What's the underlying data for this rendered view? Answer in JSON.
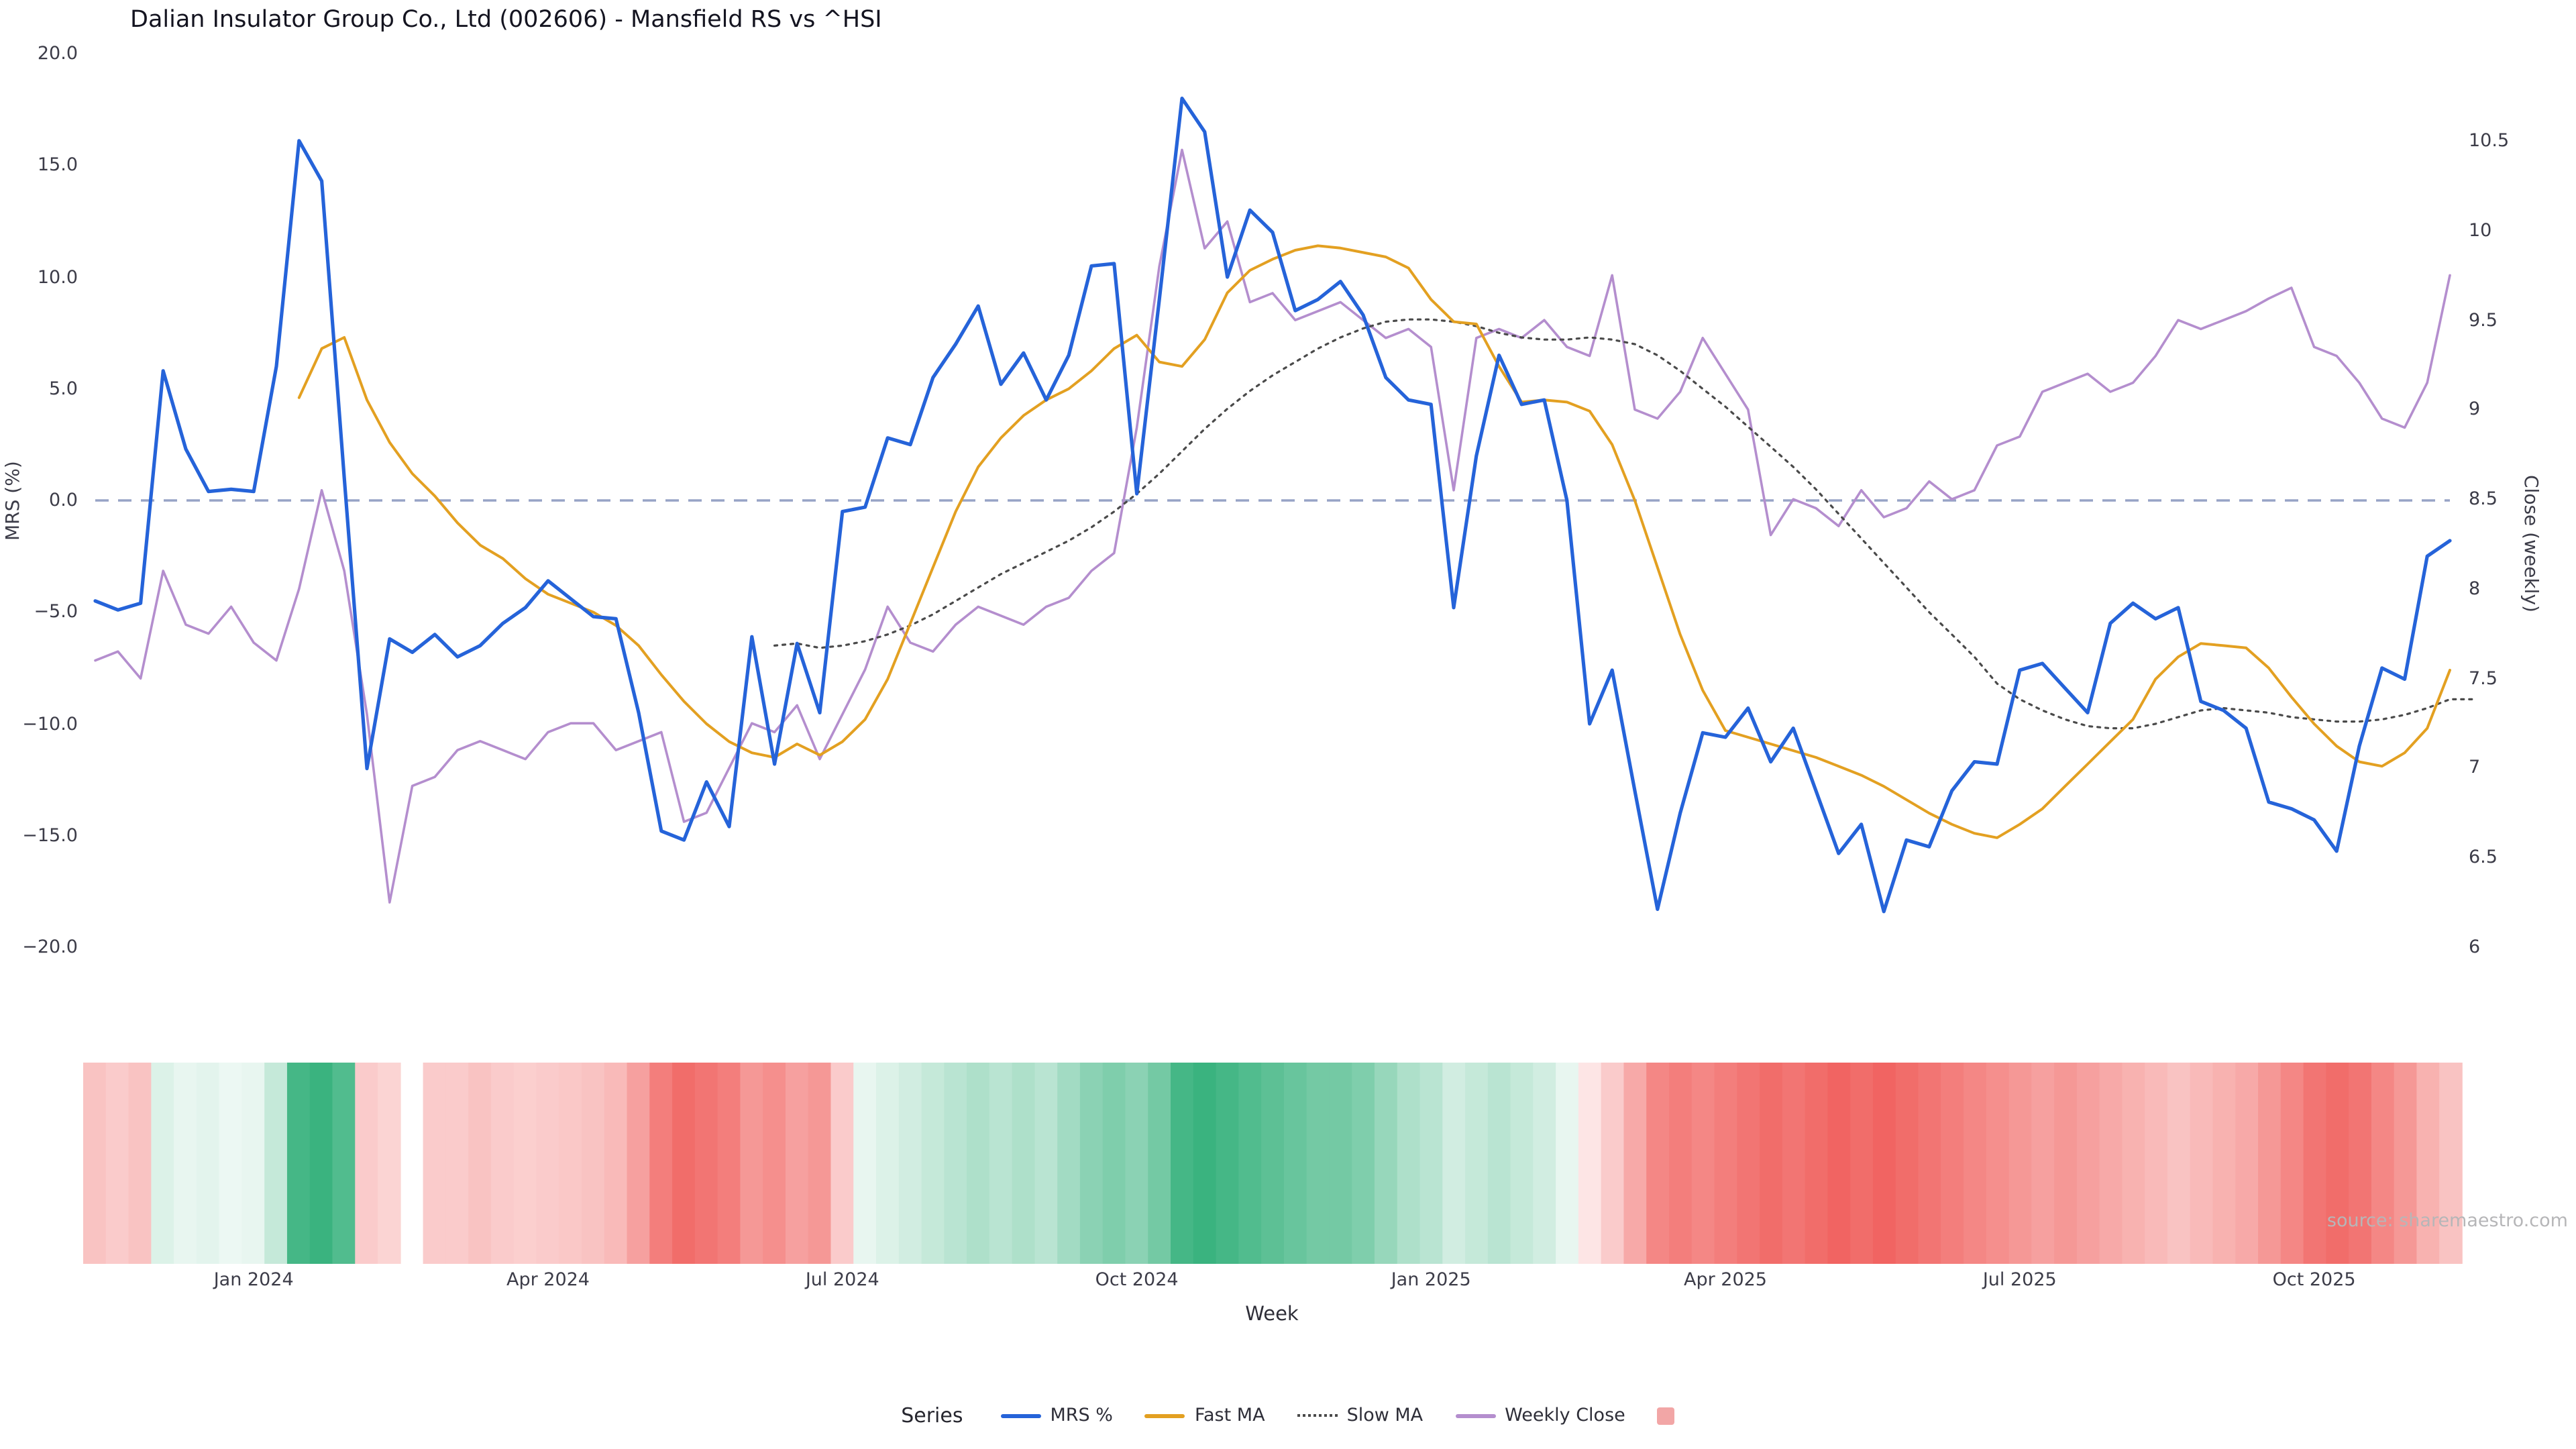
{
  "title": "Dalian Insulator Group Co., Ltd (002606) - Mansfield RS vs ^HSI",
  "source_note": "source: sharemaestro.com",
  "legend": {
    "title": "Series",
    "items": [
      {
        "label": "MRS %",
        "swatch": "line",
        "color": "#2563d9"
      },
      {
        "label": "Fast MA",
        "swatch": "line",
        "color": "#e3a021"
      },
      {
        "label": "Slow MA",
        "swatch": "dotted-line",
        "color": "#4a4a4a"
      },
      {
        "label": "Weekly Close",
        "swatch": "line",
        "color": "#b48ece"
      },
      {
        "label": "",
        "swatch": "square",
        "color": "#f2a6a6"
      }
    ]
  },
  "chart_data": {
    "type": "line",
    "title": "Dalian Insulator Group Co., Ltd (002606) - Mansfield RS vs ^HSI",
    "xlabel": "Week",
    "ylabel_left": "MRS (%)",
    "ylabel_right": "Close (weekly)",
    "ylim_left": [
      -20,
      20
    ],
    "ylim_right": [
      6,
      10.5
    ],
    "y_ticks_left": [
      "20.0",
      "15.0",
      "10.0",
      "5.0",
      "0.0",
      "−5.0",
      "−10.0",
      "−15.0",
      "−20.0"
    ],
    "y_ticks_right": [
      "10.5",
      "10",
      "9.5",
      "9",
      "8.5",
      "8",
      "7.5",
      "7",
      "6.5",
      "6"
    ],
    "zero_line": 0,
    "zero_line_color": "#97a3c6",
    "grid": false,
    "legend_position": "bottom",
    "weeks": 105,
    "x_tick_indices": [
      7,
      20,
      33,
      46,
      59,
      72,
      85,
      98
    ],
    "x_tick_labels": [
      "Jan 2024",
      "Apr 2024",
      "Jul 2024",
      "Oct 2024",
      "Jan 2025",
      "Apr 2025",
      "Jul 2025",
      "Oct 2025"
    ],
    "series": [
      {
        "name": "MRS %",
        "axis": "left",
        "color": "#2563d9",
        "style": "solid",
        "width": 2.6,
        "values": [
          -4.5,
          -4.9,
          -4.6,
          5.8,
          2.3,
          0.4,
          0.5,
          0.4,
          6.0,
          16.1,
          14.3,
          1.0,
          -12.0,
          -6.2,
          -6.8,
          -6.0,
          -7.0,
          -6.5,
          -5.5,
          -4.8,
          -3.6,
          -4.4,
          -5.2,
          -5.3,
          -9.5,
          -14.8,
          -15.2,
          -12.6,
          -14.6,
          -6.1,
          -11.8,
          -6.4,
          -9.5,
          -0.5,
          -0.3,
          2.8,
          2.5,
          5.5,
          7.0,
          8.7,
          5.2,
          6.6,
          4.5,
          6.5,
          10.5,
          10.6,
          0.3,
          9.0,
          18.0,
          16.5,
          10.0,
          13.0,
          12.0,
          8.5,
          9.0,
          9.8,
          8.3,
          5.5,
          4.5,
          4.3,
          -4.8,
          2.0,
          6.5,
          4.3,
          4.5,
          0.0,
          -10.0,
          -7.6,
          -13.0,
          -18.3,
          -14.0,
          -10.4,
          -10.6,
          -9.3,
          -11.7,
          -10.2,
          -13.0,
          -15.8,
          -14.5,
          -18.4,
          -15.2,
          -15.5,
          -13.0,
          -11.7,
          -11.8,
          -7.6,
          -7.3,
          -8.4,
          -9.5,
          -5.5,
          -4.6,
          -5.3,
          -4.8,
          -9.0,
          -9.4,
          -10.2,
          -13.5,
          -13.8,
          -14.3,
          -15.7,
          -11.0,
          -7.5,
          -8.0,
          -2.5,
          -1.8
        ]
      },
      {
        "name": "Fast MA",
        "axis": "left",
        "color": "#e3a021",
        "style": "solid",
        "width": 2.0,
        "values": [
          null,
          null,
          null,
          null,
          null,
          null,
          null,
          null,
          null,
          4.6,
          6.8,
          7.3,
          4.5,
          2.6,
          1.2,
          0.2,
          -1.0,
          -2.0,
          -2.6,
          -3.5,
          -4.2,
          -4.6,
          -5.0,
          -5.6,
          -6.5,
          -7.8,
          -9.0,
          -10.0,
          -10.8,
          -11.3,
          -11.5,
          -10.9,
          -11.4,
          -10.8,
          -9.8,
          -8.0,
          -5.5,
          -3.0,
          -0.5,
          1.5,
          2.8,
          3.8,
          4.5,
          5.0,
          5.8,
          6.8,
          7.4,
          6.2,
          6.0,
          7.2,
          9.3,
          10.3,
          10.8,
          11.2,
          11.4,
          11.3,
          11.1,
          10.9,
          10.4,
          9.0,
          8.0,
          7.9,
          6.0,
          4.4,
          4.5,
          4.4,
          4.0,
          2.5,
          0.0,
          -3.0,
          -6.0,
          -8.5,
          -10.3,
          -10.6,
          -10.9,
          -11.2,
          -11.5,
          -11.9,
          -12.3,
          -12.8,
          -13.4,
          -14.0,
          -14.5,
          -14.9,
          -15.1,
          -14.5,
          -13.8,
          -12.8,
          -11.8,
          -10.8,
          -9.8,
          -8.0,
          -7.0,
          -6.4,
          -6.5,
          -6.6,
          -7.5,
          -8.8,
          -10.0,
          -11.0,
          -11.7,
          -11.9,
          -11.3,
          -10.2,
          -7.6
        ]
      },
      {
        "name": "Slow MA",
        "axis": "left",
        "color": "#4a4a4a",
        "style": "dotted",
        "width": 1.6,
        "values": [
          null,
          null,
          null,
          null,
          null,
          null,
          null,
          null,
          null,
          null,
          null,
          null,
          null,
          null,
          null,
          null,
          null,
          null,
          null,
          null,
          null,
          null,
          null,
          null,
          null,
          null,
          null,
          null,
          null,
          null,
          -6.5,
          -6.4,
          -6.6,
          -6.5,
          -6.3,
          -6.0,
          -5.6,
          -5.1,
          -4.5,
          -3.9,
          -3.3,
          -2.8,
          -2.3,
          -1.8,
          -1.2,
          -0.5,
          0.3,
          1.2,
          2.2,
          3.2,
          4.1,
          4.9,
          5.6,
          6.2,
          6.8,
          7.3,
          7.7,
          8.0,
          8.1,
          8.1,
          8.0,
          7.8,
          7.5,
          7.3,
          7.2,
          7.2,
          7.3,
          7.2,
          7.0,
          6.5,
          5.8,
          5.0,
          4.2,
          3.3,
          2.4,
          1.5,
          0.5,
          -0.6,
          -1.7,
          -2.8,
          -3.9,
          -5.0,
          -6.0,
          -7.0,
          -8.2,
          -8.9,
          -9.4,
          -9.8,
          -10.1,
          -10.2,
          -10.2,
          -10.0,
          -9.7,
          -9.4,
          -9.3,
          -9.4,
          -9.5,
          -9.7,
          -9.8,
          -9.9,
          -9.9,
          -9.8,
          -9.6,
          -9.3,
          -8.9,
          -8.9
        ]
      },
      {
        "name": "Weekly Close",
        "axis": "right",
        "color": "#b48ece",
        "style": "solid",
        "width": 1.8,
        "values": [
          7.6,
          7.65,
          7.5,
          8.1,
          7.8,
          7.75,
          7.9,
          7.7,
          7.6,
          8.0,
          8.55,
          8.1,
          7.3,
          6.25,
          6.9,
          6.95,
          7.1,
          7.15,
          7.1,
          7.05,
          7.2,
          7.25,
          7.25,
          7.1,
          7.15,
          7.2,
          6.7,
          6.75,
          7.0,
          7.25,
          7.2,
          7.35,
          7.05,
          7.3,
          7.55,
          7.9,
          7.7,
          7.65,
          7.8,
          7.9,
          7.85,
          7.8,
          7.9,
          7.95,
          8.1,
          8.2,
          8.9,
          9.8,
          10.45,
          9.9,
          10.05,
          9.6,
          9.65,
          9.5,
          9.55,
          9.6,
          9.5,
          9.4,
          9.45,
          9.35,
          8.55,
          9.4,
          9.45,
          9.4,
          9.5,
          9.35,
          9.3,
          9.75,
          9.0,
          8.95,
          9.1,
          9.4,
          9.2,
          9.0,
          8.3,
          8.5,
          8.45,
          8.35,
          8.55,
          8.4,
          8.45,
          8.6,
          8.5,
          8.55,
          8.8,
          8.85,
          9.1,
          9.15,
          9.2,
          9.1,
          9.15,
          9.3,
          9.5,
          9.45,
          9.5,
          9.55,
          9.62,
          9.68,
          9.35,
          9.3,
          9.15,
          8.95,
          8.9,
          9.15,
          9.75
        ]
      }
    ],
    "heatmap": {
      "name": "MRS strength strip",
      "colors": {
        "positive": "#17a568",
        "negative": "#ef5350"
      },
      "values": [
        -0.35,
        -0.3,
        -0.35,
        0.15,
        0.1,
        0.12,
        0.08,
        0.1,
        0.25,
        0.8,
        0.85,
        0.75,
        -0.3,
        -0.25,
        null,
        -0.3,
        -0.3,
        -0.35,
        -0.3,
        -0.28,
        -0.3,
        -0.32,
        -0.35,
        -0.4,
        -0.55,
        -0.75,
        -0.85,
        -0.8,
        -0.75,
        -0.6,
        -0.65,
        -0.55,
        -0.6,
        -0.3,
        0.1,
        0.15,
        0.2,
        0.25,
        0.3,
        0.35,
        0.3,
        0.35,
        0.3,
        0.4,
        0.5,
        0.55,
        0.5,
        0.6,
        0.8,
        0.85,
        0.8,
        0.75,
        0.7,
        0.65,
        0.6,
        0.6,
        0.55,
        0.45,
        0.35,
        0.3,
        0.2,
        0.25,
        0.3,
        0.25,
        0.2,
        0.1,
        -0.15,
        -0.3,
        -0.5,
        -0.7,
        -0.75,
        -0.7,
        -0.75,
        -0.8,
        -0.85,
        -0.8,
        -0.85,
        -0.9,
        -0.85,
        -0.9,
        -0.85,
        -0.8,
        -0.75,
        -0.7,
        -0.65,
        -0.6,
        -0.55,
        -0.6,
        -0.55,
        -0.5,
        -0.45,
        -0.4,
        -0.35,
        -0.4,
        -0.45,
        -0.5,
        -0.6,
        -0.7,
        -0.8,
        -0.85,
        -0.8,
        -0.7,
        -0.6,
        -0.45,
        -0.35
      ]
    }
  }
}
